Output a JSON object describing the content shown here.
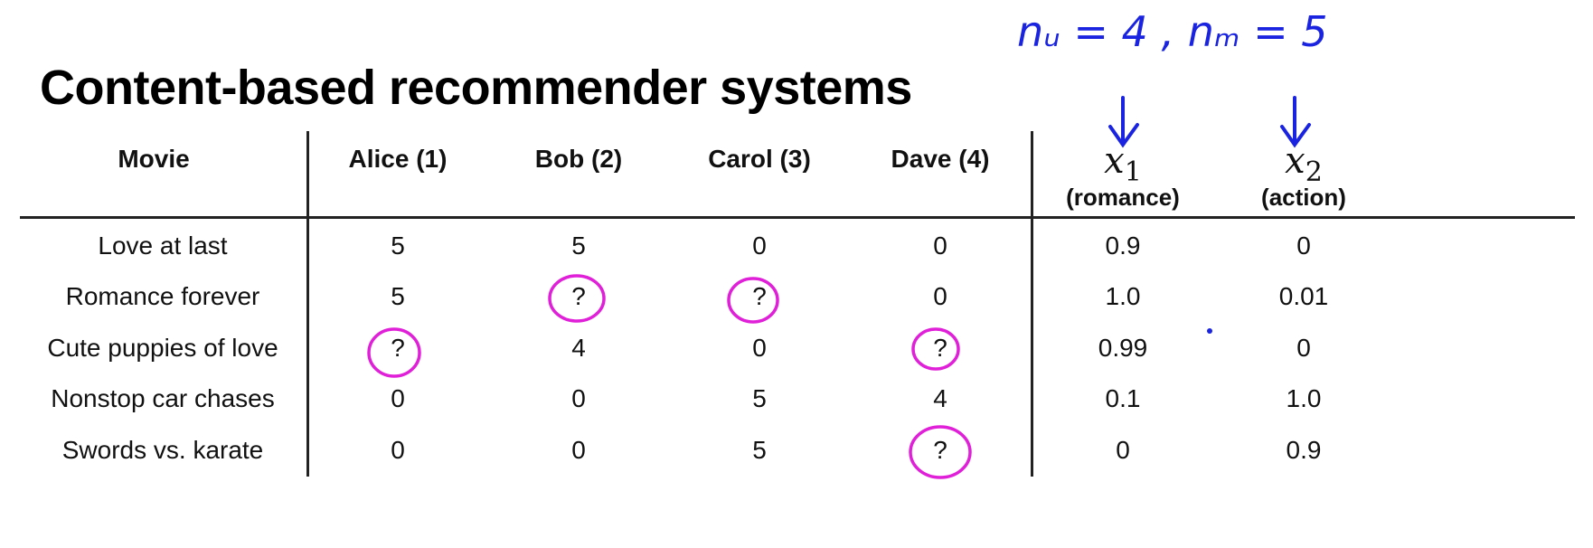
{
  "title": "Content-based recommender systems",
  "annotation": {
    "text": "nᵤ = 4 , nₘ = 5",
    "ink_color": "#1a24e0",
    "circle_color": "#e020d8"
  },
  "table": {
    "header_movie": "Movie",
    "users": [
      "Alice (1)",
      "Bob (2)",
      "Carol (3)",
      "Dave (4)"
    ],
    "features": [
      {
        "symbol": "x",
        "subscript": "1",
        "label": "(romance)"
      },
      {
        "symbol": "x",
        "subscript": "2",
        "label": "(action)"
      }
    ],
    "rows": [
      {
        "movie": "Love at last",
        "ratings": [
          "5",
          "5",
          "0",
          "0"
        ],
        "features": [
          "0.9",
          "0"
        ]
      },
      {
        "movie": "Romance forever",
        "ratings": [
          "5",
          "?",
          "?",
          "0"
        ],
        "features": [
          "1.0",
          "0.01"
        ]
      },
      {
        "movie": "Cute puppies of love",
        "ratings": [
          "?",
          "4",
          "0",
          "?"
        ],
        "features": [
          "0.99",
          "0"
        ]
      },
      {
        "movie": "Nonstop car chases",
        "ratings": [
          "0",
          "0",
          "5",
          "4"
        ],
        "features": [
          "0.1",
          "1.0"
        ]
      },
      {
        "movie": "Swords vs. karate",
        "ratings": [
          "0",
          "0",
          "5",
          "?"
        ],
        "features": [
          "0",
          "0.9"
        ]
      }
    ]
  }
}
